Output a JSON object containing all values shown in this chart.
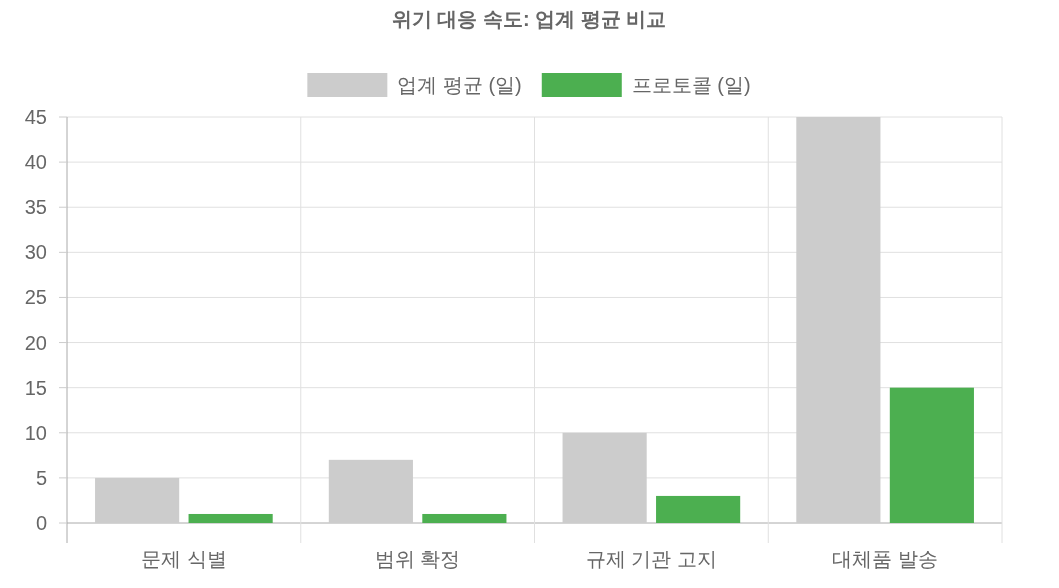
{
  "chart_data": {
    "type": "bar",
    "title": "위기 대응 속도: 업계 평균 비교",
    "categories": [
      "문제 식별",
      "범위 확정",
      "규제 기관 고지",
      "대체품 발송"
    ],
    "series": [
      {
        "name": "업계 평균 (일)",
        "color": "#cccccc",
        "values": [
          5,
          7,
          10,
          45
        ]
      },
      {
        "name": "프로토콜 (일)",
        "color": "#4caf50",
        "values": [
          1,
          1,
          3,
          15
        ]
      }
    ],
    "ylim": [
      0,
      45
    ],
    "yticks": [
      0,
      5,
      10,
      15,
      20,
      25,
      30,
      35,
      40,
      45
    ],
    "grid": true,
    "legend": "top"
  }
}
